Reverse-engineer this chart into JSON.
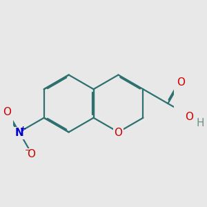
{
  "bg_color": "#e8e8e8",
  "bond_color": "#2d7070",
  "bond_width": 1.6,
  "dbo": 0.04,
  "bl": 1.0,
  "atom_colors": {
    "O": "#cc0000",
    "N": "#0000cc",
    "H": "#6a9090"
  },
  "font_size": 11,
  "font_size_charge": 8,
  "xlim": [
    -2.8,
    2.8
  ],
  "ylim": [
    -2.0,
    2.0
  ]
}
